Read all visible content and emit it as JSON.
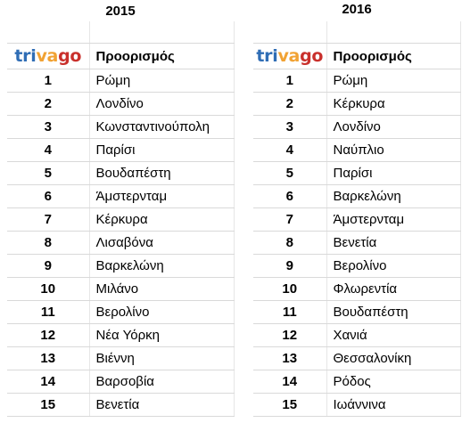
{
  "left": {
    "year": "2015",
    "logo": "trivago",
    "header": "Προορισμός",
    "rows": [
      {
        "rank": "1",
        "city": "Ρώμη"
      },
      {
        "rank": "2",
        "city": "Λονδίνο"
      },
      {
        "rank": "3",
        "city": "Κωνσταντινούπολη"
      },
      {
        "rank": "4",
        "city": "Παρίσι"
      },
      {
        "rank": "5",
        "city": "Βουδαπέστη"
      },
      {
        "rank": "6",
        "city": "Άμστερνταμ"
      },
      {
        "rank": "7",
        "city": "Κέρκυρα"
      },
      {
        "rank": "8",
        "city": "Λισαβόνα"
      },
      {
        "rank": "9",
        "city": "Βαρκελώνη"
      },
      {
        "rank": "10",
        "city": "Μιλάνο"
      },
      {
        "rank": "11",
        "city": "Βερολίνο"
      },
      {
        "rank": "12",
        "city": "Νέα Υόρκη"
      },
      {
        "rank": "13",
        "city": "Βιέννη"
      },
      {
        "rank": "14",
        "city": "Βαρσοβία"
      },
      {
        "rank": "15",
        "city": "Βενετία"
      }
    ]
  },
  "right": {
    "year": "2016",
    "logo": "trivago",
    "header": "Προορισμός",
    "rows": [
      {
        "rank": "1",
        "city": "Ρώμη"
      },
      {
        "rank": "2",
        "city": "Κέρκυρα"
      },
      {
        "rank": "3",
        "city": "Λονδίνο"
      },
      {
        "rank": "4",
        "city": "Ναύπλιο"
      },
      {
        "rank": "5",
        "city": "Παρίσι"
      },
      {
        "rank": "6",
        "city": "Βαρκελώνη"
      },
      {
        "rank": "7",
        "city": "Άμστερνταμ"
      },
      {
        "rank": "8",
        "city": "Βενετία"
      },
      {
        "rank": "9",
        "city": "Βερολίνο"
      },
      {
        "rank": "10",
        "city": "Φλωρεντία"
      },
      {
        "rank": "11",
        "city": "Βουδαπέστη"
      },
      {
        "rank": "12",
        "city": "Χανιά"
      },
      {
        "rank": "13",
        "city": "Θεσσαλονίκη"
      },
      {
        "rank": "14",
        "city": "Ρόδος"
      },
      {
        "rank": "15",
        "city": "Ιωάννινα"
      }
    ]
  },
  "logo_colors": {
    "tri": "#2f6db5",
    "va": "#f1a233",
    "go": "#c9302c"
  }
}
